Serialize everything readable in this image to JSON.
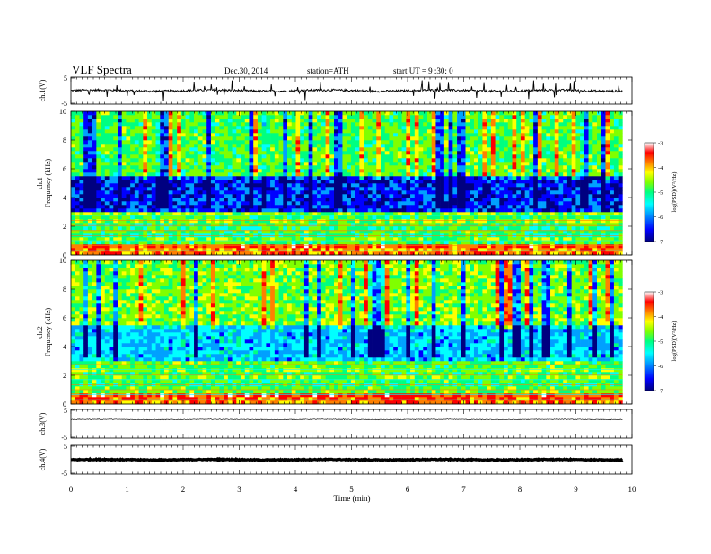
{
  "header": {
    "title": "VLF  Spectra",
    "date": "Dec.30, 2014",
    "station": "station=ATH",
    "start": "start  UT =   9  :30: 0"
  },
  "chart_data": [
    {
      "type": "line",
      "panel": "ch1",
      "ylabel": "ch.1(V)",
      "yticks": [
        "5",
        "-5"
      ],
      "ylim": [
        -5,
        5
      ],
      "series": [
        {
          "baseline": 0,
          "noise_amplitude": 0.4,
          "spike_amplitude": 2.5
        }
      ]
    },
    {
      "type": "heatmap",
      "panel": "ch1-spectrogram",
      "ylabel": "ch.1\nFrequency  (kHz)",
      "ylabel_line1": "ch.1",
      "ylabel_line2": "Frequency  (kHz)",
      "yticks": [
        "0",
        "2",
        "4",
        "6",
        "8",
        "10"
      ],
      "ylim": [
        0,
        10
      ],
      "xlim": [
        0,
        9.83
      ],
      "colorbar": {
        "label": "log(PSD)(V²/Hz)",
        "ticks": [
          "-3",
          "-4",
          "-5",
          "-6",
          "-7"
        ],
        "range": [
          -7,
          -3
        ]
      }
    },
    {
      "type": "heatmap",
      "panel": "ch2-spectrogram",
      "ylabel": "ch.2\nFrequency  (kHz)",
      "ylabel_line1": "ch.2",
      "ylabel_line2": "Frequency  (kHz)",
      "yticks": [
        "0",
        "2",
        "4",
        "6",
        "8",
        "10"
      ],
      "ylim": [
        0,
        10
      ],
      "xlim": [
        0,
        9.83
      ],
      "colorbar": {
        "label": "log(PSD)(V²/Hz)",
        "ticks": [
          "-3",
          "-4",
          "-5",
          "-6",
          "-7"
        ],
        "range": [
          -7,
          -3
        ]
      }
    },
    {
      "type": "line",
      "panel": "ch3",
      "ylabel": "ch.3(V)",
      "yticks": [
        "5",
        "-5"
      ],
      "ylim": [
        -5,
        5
      ],
      "series": [
        {
          "baseline": 1.5,
          "noise_amplitude": 0.12
        }
      ]
    },
    {
      "type": "line",
      "panel": "ch4",
      "ylabel": "ch.4(V)",
      "yticks": [
        "5",
        "-5"
      ],
      "ylim": [
        -5,
        5
      ],
      "series": [
        {
          "baseline": 0,
          "noise_amplitude": 0.15
        }
      ]
    }
  ],
  "xaxis": {
    "label": "Time  (min)",
    "ticks": [
      "0",
      "1",
      "2",
      "3",
      "4",
      "5",
      "6",
      "7",
      "8",
      "9",
      "10"
    ],
    "xlim": [
      0,
      10
    ]
  },
  "colors": {
    "colormap": [
      "#000080",
      "#0000ff",
      "#00a0ff",
      "#00ffff",
      "#00ff80",
      "#80ff00",
      "#ffff00",
      "#ff8000",
      "#ff0000",
      "#ffffff"
    ]
  }
}
